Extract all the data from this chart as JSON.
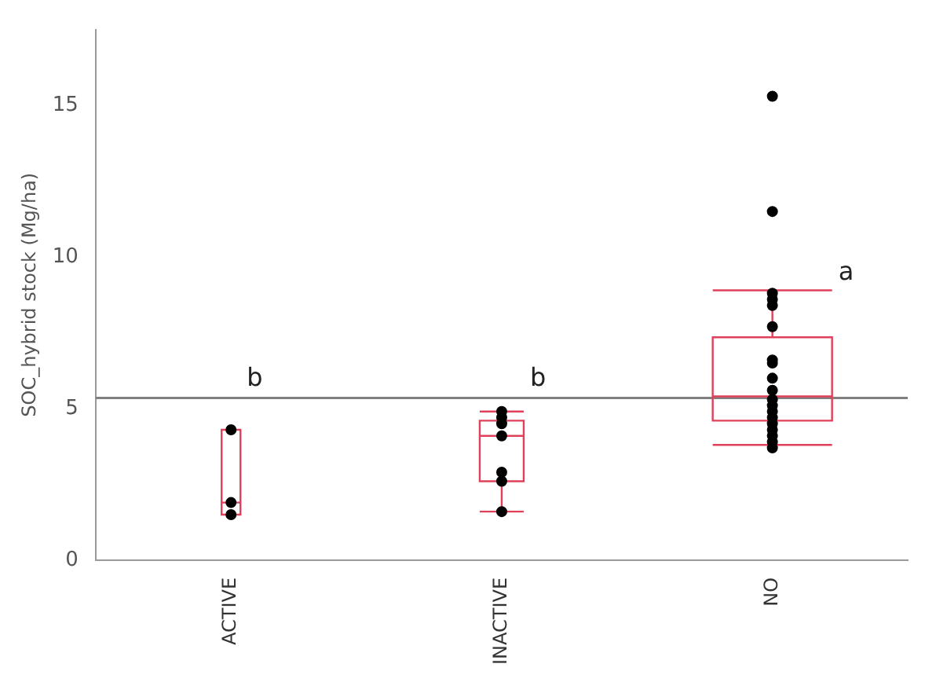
{
  "chart_data": {
    "type": "box",
    "ylabel": "SOC_hybrid stock (Mg/ha)",
    "categories": [
      "ACTIVE",
      "INACTIVE",
      "NO"
    ],
    "color": "#e0405a",
    "boxes": [
      {
        "low": 1.5,
        "q1": 1.5,
        "median": 1.9,
        "q3": 4.3,
        "high": 4.3
      },
      {
        "low": 1.6,
        "q1": 2.6,
        "median": 4.1,
        "q3": 4.6,
        "high": 4.9
      },
      {
        "low": 3.8,
        "q1": 4.6,
        "median": 5.4,
        "q3": 7.35,
        "high": 8.9
      }
    ],
    "series": [
      {
        "type": "scatter",
        "color": "#000000",
        "x": [
          "ACTIVE",
          "ACTIVE",
          "ACTIVE",
          "INACTIVE",
          "INACTIVE",
          "INACTIVE",
          "INACTIVE",
          "INACTIVE",
          "INACTIVE",
          "INACTIVE",
          "NO",
          "NO",
          "NO",
          "NO",
          "NO",
          "NO",
          "NO",
          "NO",
          "NO",
          "NO",
          "NO",
          "NO",
          "NO",
          "NO",
          "NO",
          "NO",
          "NO",
          "NO",
          "NO"
        ],
        "values": [
          4.3,
          1.9,
          1.5,
          4.9,
          4.7,
          4.5,
          4.1,
          2.9,
          2.6,
          1.6,
          15.3,
          11.5,
          8.8,
          8.6,
          8.4,
          7.7,
          6.6,
          6.5,
          6.0,
          5.6,
          5.3,
          5.1,
          4.9,
          4.7,
          4.5,
          4.3,
          4.1,
          3.9,
          3.7
        ]
      }
    ],
    "marker": "circle",
    "ylim": [
      0,
      17.5
    ],
    "yticks": [
      0,
      5,
      10,
      15
    ],
    "ref_lines": [
      {
        "axis": "y",
        "value": 5.35,
        "color": "#808080"
      }
    ],
    "annotations": [
      "b",
      "b",
      "a"
    ],
    "grid": false,
    "legend": false
  }
}
